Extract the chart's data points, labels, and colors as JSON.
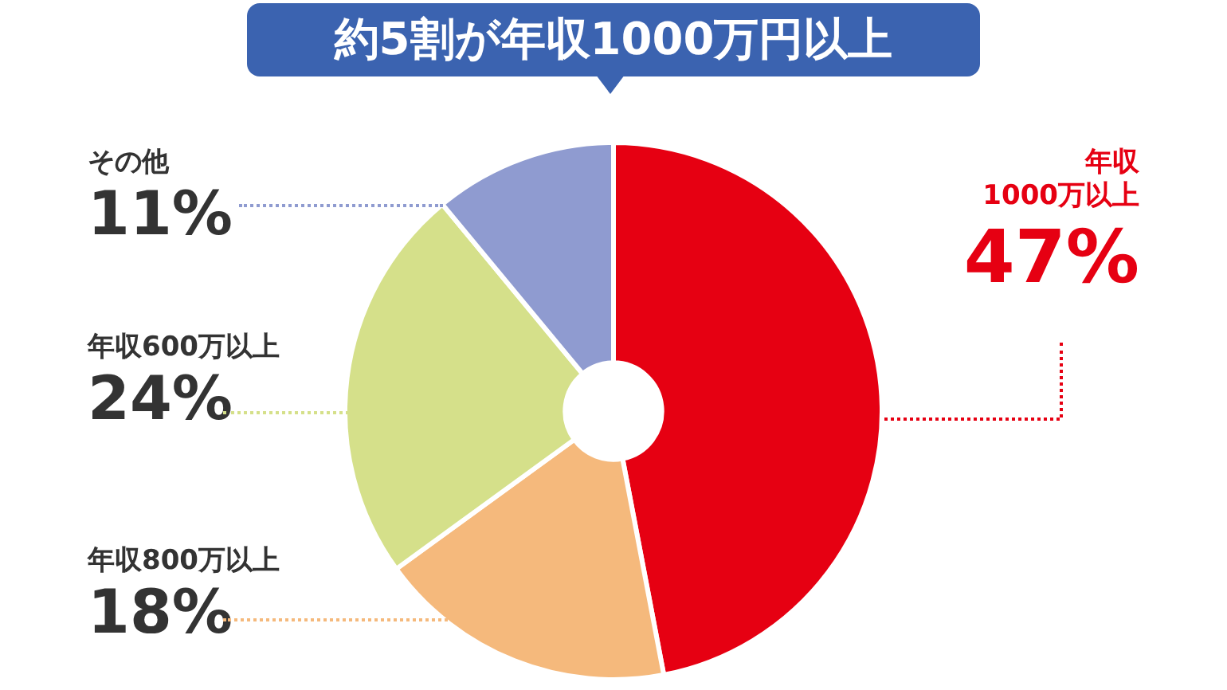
{
  "chart_data": {
    "type": "donut",
    "title": "約5割が年収1000万円以上",
    "categories": [
      "年収\n1000万以上",
      "年収800万以上",
      "年収600万以上",
      "その他"
    ],
    "values": [
      47,
      18,
      24,
      11
    ],
    "colors": [
      "#e60012",
      "#f5b97c",
      "#d5e08a",
      "#8f9bd0"
    ],
    "value_labels": [
      "47%",
      "18%",
      "24%",
      "11%"
    ],
    "legend": false
  }
}
